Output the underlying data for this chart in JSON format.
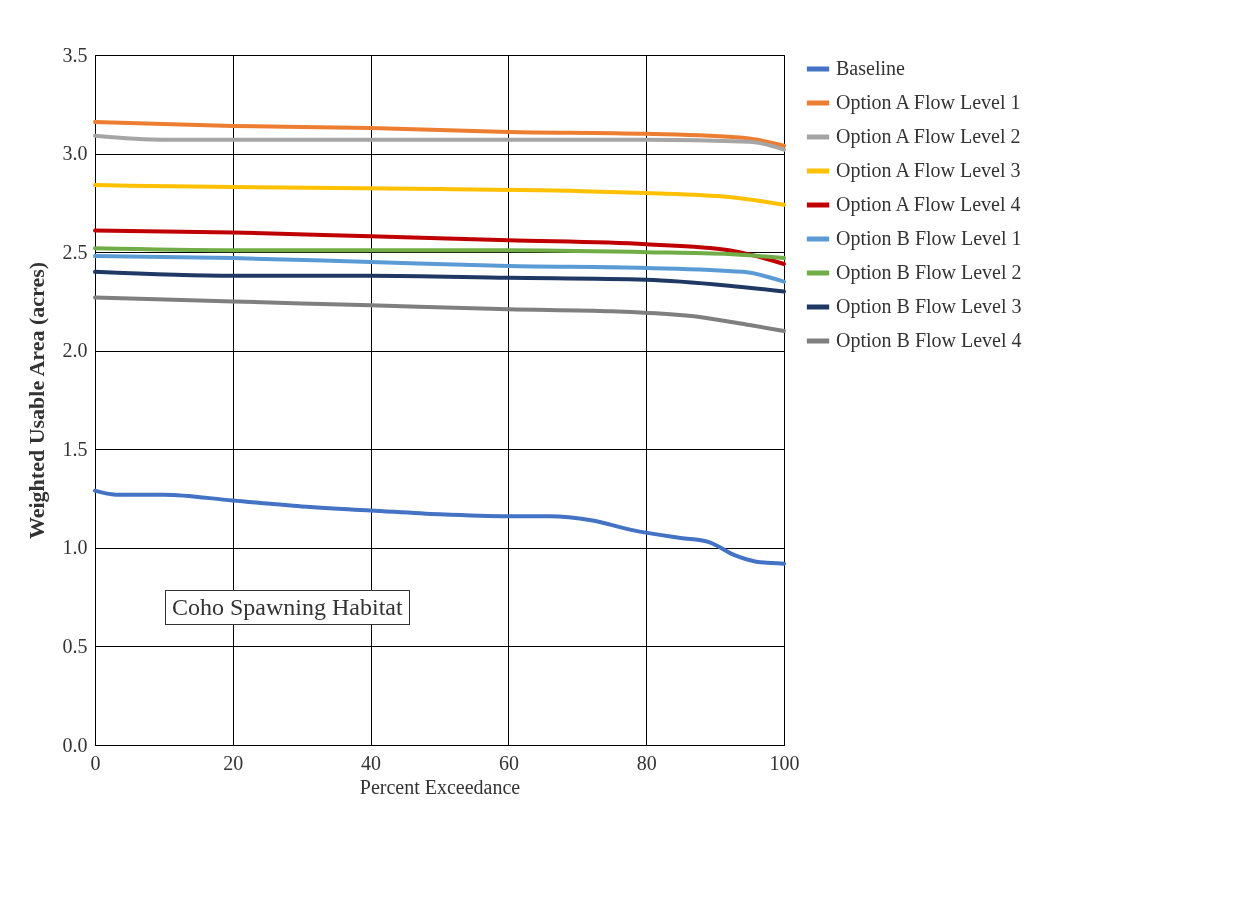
{
  "chart_data": {
    "type": "line",
    "xlabel": "Percent Exceedance",
    "ylabel": "Weighted Usable Area (acres)",
    "xlim": [
      0,
      100
    ],
    "xticks": [
      0,
      20,
      40,
      60,
      80,
      100
    ],
    "ylim": [
      0,
      3.5
    ],
    "yticks": [
      {
        "value": 0,
        "label": "0.0"
      },
      0.5,
      {
        "value": 1,
        "label": "1.0"
      },
      1.5,
      {
        "value": 2,
        "label": "2.0"
      },
      2.5,
      {
        "value": 3,
        "label": "3.0"
      },
      3.5
    ],
    "grid": true,
    "legend": "right",
    "line_style": "solid",
    "annotations": [
      "Coho Spawning Habitat"
    ],
    "series": [
      {
        "name": "Baseline",
        "color": "#4472c4",
        "x": [
          0,
          3,
          10,
          20,
          30,
          40,
          50,
          60,
          66,
          72,
          78,
          85,
          89,
          93,
          96,
          100
        ],
        "values": [
          1.29,
          1.27,
          1.27,
          1.24,
          1.21,
          1.19,
          1.17,
          1.16,
          1.16,
          1.14,
          1.09,
          1.05,
          1.03,
          0.96,
          0.93,
          0.92
        ]
      },
      {
        "name": "Option A Flow Level 1",
        "color": "#ed7d31",
        "x": [
          0,
          20,
          40,
          60,
          80,
          94,
          100
        ],
        "values": [
          3.16,
          3.14,
          3.13,
          3.11,
          3.1,
          3.08,
          3.04
        ]
      },
      {
        "name": "Option A Flow Level 2",
        "color": "#a5a5a5",
        "x": [
          0,
          10,
          40,
          60,
          80,
          95,
          100
        ],
        "values": [
          3.09,
          3.07,
          3.07,
          3.07,
          3.07,
          3.06,
          3.02
        ]
      },
      {
        "name": "Option A Flow Level 3",
        "color": "#ffc000",
        "x": [
          0,
          20,
          50,
          70,
          80,
          92,
          100
        ],
        "values": [
          2.84,
          2.83,
          2.82,
          2.81,
          2.8,
          2.78,
          2.74
        ]
      },
      {
        "name": "Option A Flow Level 4",
        "color": "#c00000",
        "x": [
          0,
          20,
          40,
          60,
          80,
          92,
          100
        ],
        "values": [
          2.61,
          2.6,
          2.58,
          2.56,
          2.54,
          2.51,
          2.44
        ]
      },
      {
        "name": "Option B Flow Level 1",
        "color": "#5b9bd5",
        "x": [
          0,
          20,
          40,
          60,
          80,
          94,
          100
        ],
        "values": [
          2.48,
          2.47,
          2.45,
          2.43,
          2.42,
          2.4,
          2.35
        ]
      },
      {
        "name": "Option B Flow Level 2",
        "color": "#70ad47",
        "x": [
          0,
          20,
          40,
          60,
          80,
          92,
          100
        ],
        "values": [
          2.52,
          2.51,
          2.51,
          2.51,
          2.5,
          2.49,
          2.47
        ]
      },
      {
        "name": "Option B Flow Level 3",
        "color": "#203864",
        "x": [
          0,
          20,
          40,
          60,
          80,
          92,
          100
        ],
        "values": [
          2.4,
          2.38,
          2.38,
          2.37,
          2.36,
          2.33,
          2.3
        ]
      },
      {
        "name": "Option B Flow Level 4",
        "color": "#7f7f7f",
        "x": [
          0,
          20,
          40,
          60,
          75,
          88,
          95,
          100
        ],
        "values": [
          2.27,
          2.25,
          2.23,
          2.21,
          2.2,
          2.17,
          2.13,
          2.1
        ]
      }
    ]
  }
}
